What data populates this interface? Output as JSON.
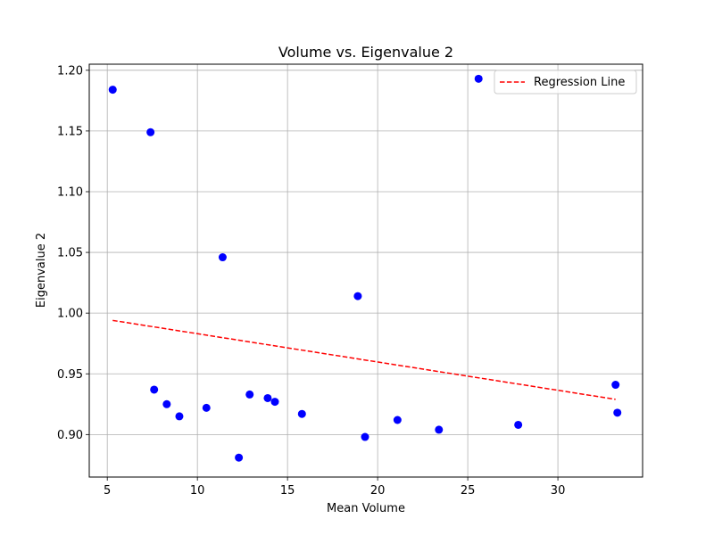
{
  "chart_data": {
    "type": "scatter",
    "title": "Volume vs. Eigenvalue 2",
    "xlabel": "Mean Volume",
    "ylabel": "Eigenvalue 2",
    "xlim": [
      4.0,
      34.7
    ],
    "ylim": [
      0.865,
      1.205
    ],
    "xticks": [
      5,
      10,
      15,
      20,
      25,
      30
    ],
    "yticks": [
      0.9,
      0.95,
      1.0,
      1.05,
      1.1,
      1.15,
      1.2
    ],
    "ytick_labels": [
      "0.90",
      "0.95",
      "1.00",
      "1.05",
      "1.10",
      "1.15",
      "1.20"
    ],
    "grid": true,
    "legend_position": "top-right",
    "points": {
      "color": "#0000ff",
      "x": [
        5.3,
        7.4,
        7.6,
        8.3,
        9.0,
        10.5,
        11.4,
        12.3,
        12.9,
        13.9,
        14.3,
        15.8,
        18.9,
        19.3,
        21.1,
        23.4,
        25.6,
        27.8,
        33.2,
        33.3
      ],
      "y": [
        1.184,
        1.149,
        0.937,
        0.925,
        0.915,
        0.922,
        1.046,
        0.881,
        0.933,
        0.93,
        0.927,
        0.917,
        1.014,
        0.898,
        0.912,
        0.904,
        1.193,
        0.908,
        0.941,
        0.918
      ]
    },
    "regression_line": {
      "name": "Regression Line",
      "color": "#ff0000",
      "style": "dashed",
      "x": [
        5.3,
        33.2
      ],
      "y": [
        0.994,
        0.929
      ]
    }
  }
}
